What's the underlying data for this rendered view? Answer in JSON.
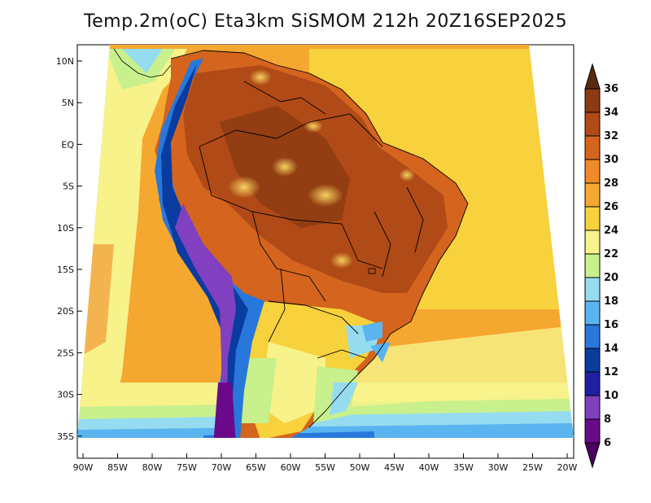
{
  "title": "Temp.2m(oC) Eta3km SiSMOM 212h 20Z16SEP2025",
  "lat_labels": [
    "10N",
    "5N",
    "EQ",
    "5S",
    "10S",
    "15S",
    "20S",
    "25S",
    "30S",
    "35S"
  ],
  "lon_labels": [
    "90W",
    "85W",
    "80W",
    "75W",
    "70W",
    "65W",
    "60W",
    "55W",
    "50W",
    "45W",
    "40W",
    "35W",
    "30W",
    "25W",
    "20W"
  ],
  "colorbar": {
    "labels": [
      "36",
      "34",
      "32",
      "30",
      "28",
      "26",
      "24",
      "22",
      "20",
      "18",
      "16",
      "14",
      "12",
      "10",
      "8",
      "6"
    ],
    "colors": [
      "#5a2a0e",
      "#8b3a12",
      "#b04a16",
      "#d4641e",
      "#f08a28",
      "#f5a830",
      "#f7d23c",
      "#f7f28a",
      "#c8f08c",
      "#96dcf0",
      "#5ab4f0",
      "#2878dc",
      "#0a3ca0",
      "#2020a0",
      "#8040c0",
      "#6a0a8a",
      "#4a0060"
    ]
  }
}
